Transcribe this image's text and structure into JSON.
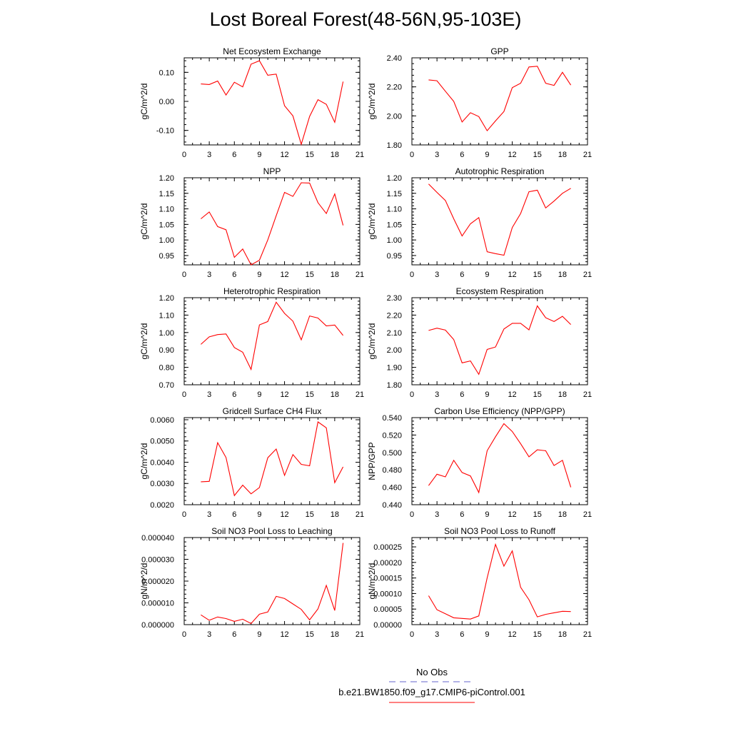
{
  "page_title": "Lost Boreal Forest(48-56N,95-103E)",
  "series_color": "#ff0000",
  "obs_color": "#6666cc",
  "legend": {
    "obs_label": "No Obs",
    "model_label": "b.e21.BW1850.f09_g17.CMIP6-piControl.001"
  },
  "chart_data": [
    {
      "type": "line",
      "title": "Net Ecosystem Exchange",
      "ylabel": "gC/m^2/d",
      "xlim": [
        0,
        21
      ],
      "xticks": [
        0,
        3,
        6,
        9,
        12,
        15,
        18,
        21
      ],
      "ylim": [
        -0.15,
        0.15
      ],
      "yticks": [
        -0.1,
        0.0,
        0.1
      ],
      "ytick_labels": [
        "-0.10",
        "0.00",
        "0.10"
      ],
      "x": [
        2,
        3,
        4,
        5,
        6,
        7,
        8,
        9,
        10,
        11,
        12,
        13,
        14,
        15,
        16,
        17,
        18,
        19
      ],
      "series": [
        {
          "values": [
            0.06,
            0.058,
            0.07,
            0.022,
            0.066,
            0.05,
            0.128,
            0.14,
            0.09,
            0.094,
            -0.015,
            -0.05,
            -0.148,
            -0.052,
            0.006,
            -0.01,
            -0.072,
            0.068
          ]
        }
      ]
    },
    {
      "type": "line",
      "title": "GPP",
      "ylabel": "gC/m^2/d",
      "xlim": [
        0,
        21
      ],
      "xticks": [
        0,
        3,
        6,
        9,
        12,
        15,
        18,
        21
      ],
      "ylim": [
        1.8,
        2.4
      ],
      "yticks": [
        1.8,
        2.0,
        2.2,
        2.4
      ],
      "ytick_labels": [
        "1.80",
        "2.00",
        "2.20",
        "2.40"
      ],
      "x": [
        2,
        3,
        4,
        5,
        6,
        7,
        8,
        9,
        10,
        11,
        12,
        13,
        14,
        15,
        16,
        17,
        18,
        19
      ],
      "series": [
        {
          "values": [
            2.248,
            2.242,
            2.17,
            2.1,
            1.958,
            2.022,
            1.995,
            1.898,
            1.965,
            2.03,
            2.195,
            2.225,
            2.337,
            2.342,
            2.225,
            2.21,
            2.3,
            2.212
          ]
        }
      ]
    },
    {
      "type": "line",
      "title": "NPP",
      "ylabel": "gC/m^2/d",
      "xlim": [
        0,
        21
      ],
      "xticks": [
        0,
        3,
        6,
        9,
        12,
        15,
        18,
        21
      ],
      "ylim": [
        0.92,
        1.2
      ],
      "yticks": [
        0.95,
        1.0,
        1.05,
        1.1,
        1.15,
        1.2
      ],
      "ytick_labels": [
        "0.95",
        "1.00",
        "1.05",
        "1.10",
        "1.15",
        "1.20"
      ],
      "x": [
        2,
        3,
        4,
        5,
        6,
        7,
        8,
        9,
        10,
        11,
        12,
        13,
        14,
        15,
        16,
        17,
        18,
        19
      ],
      "series": [
        {
          "values": [
            1.068,
            1.09,
            1.043,
            1.033,
            0.944,
            0.971,
            0.92,
            0.935,
            1.0,
            1.078,
            1.153,
            1.14,
            1.184,
            1.183,
            1.12,
            1.085,
            1.148,
            1.047
          ]
        }
      ]
    },
    {
      "type": "line",
      "title": "Autotrophic Respiration",
      "ylabel": "gC/m^2/d",
      "xlim": [
        0,
        21
      ],
      "xticks": [
        0,
        3,
        6,
        9,
        12,
        15,
        18,
        21
      ],
      "ylim": [
        0.92,
        1.2
      ],
      "yticks": [
        0.95,
        1.0,
        1.05,
        1.1,
        1.15,
        1.2
      ],
      "ytick_labels": [
        "0.95",
        "1.00",
        "1.05",
        "1.10",
        "1.15",
        "1.20"
      ],
      "x": [
        2,
        3,
        4,
        5,
        6,
        7,
        8,
        9,
        10,
        11,
        12,
        13,
        14,
        15,
        16,
        17,
        18,
        19
      ],
      "series": [
        {
          "values": [
            1.18,
            1.153,
            1.127,
            1.068,
            1.013,
            1.052,
            1.072,
            0.962,
            0.956,
            0.951,
            1.04,
            1.085,
            1.155,
            1.16,
            1.103,
            1.125,
            1.15,
            1.166
          ]
        }
      ]
    },
    {
      "type": "line",
      "title": "Heterotrophic Respiration",
      "ylabel": "gC/m^2/d",
      "xlim": [
        0,
        21
      ],
      "xticks": [
        0,
        3,
        6,
        9,
        12,
        15,
        18,
        21
      ],
      "ylim": [
        0.7,
        1.2
      ],
      "yticks": [
        0.7,
        0.8,
        0.9,
        1.0,
        1.1,
        1.2
      ],
      "ytick_labels": [
        "0.70",
        "0.80",
        "0.90",
        "1.00",
        "1.10",
        "1.20"
      ],
      "x": [
        2,
        3,
        4,
        5,
        6,
        7,
        8,
        9,
        10,
        11,
        12,
        13,
        14,
        15,
        16,
        17,
        18,
        19
      ],
      "series": [
        {
          "values": [
            0.932,
            0.975,
            0.988,
            0.992,
            0.914,
            0.887,
            0.788,
            1.044,
            1.063,
            1.174,
            1.11,
            1.065,
            0.958,
            1.095,
            1.083,
            1.038,
            1.043,
            0.983
          ]
        }
      ]
    },
    {
      "type": "line",
      "title": "Ecosystem Respiration",
      "ylabel": "gC/m^2/d",
      "xlim": [
        0,
        21
      ],
      "xticks": [
        0,
        3,
        6,
        9,
        12,
        15,
        18,
        21
      ],
      "ylim": [
        1.8,
        2.3
      ],
      "yticks": [
        1.8,
        1.9,
        2.0,
        2.1,
        2.2,
        2.3
      ],
      "ytick_labels": [
        "1.80",
        "1.90",
        "2.00",
        "2.10",
        "2.20",
        "2.30"
      ],
      "x": [
        2,
        3,
        4,
        5,
        6,
        7,
        8,
        9,
        10,
        11,
        12,
        13,
        14,
        15,
        16,
        17,
        18,
        19
      ],
      "series": [
        {
          "values": [
            2.112,
            2.125,
            2.114,
            2.06,
            1.926,
            1.937,
            1.86,
            2.003,
            2.017,
            2.12,
            2.153,
            2.153,
            2.115,
            2.253,
            2.185,
            2.163,
            2.193,
            2.146
          ]
        }
      ]
    },
    {
      "type": "line",
      "title": "Gridcell Surface CH4 Flux",
      "ylabel": "gC/m^2/d",
      "xlim": [
        0,
        21
      ],
      "xticks": [
        0,
        3,
        6,
        9,
        12,
        15,
        18,
        21
      ],
      "ylim": [
        0.002,
        0.0061
      ],
      "yticks": [
        0.002,
        0.003,
        0.004,
        0.005,
        0.006
      ],
      "ytick_labels": [
        "0.0020",
        "0.0030",
        "0.0040",
        "0.0050",
        "0.0060"
      ],
      "x": [
        2,
        3,
        4,
        5,
        6,
        7,
        8,
        9,
        10,
        11,
        12,
        13,
        14,
        15,
        16,
        17,
        18,
        19
      ],
      "series": [
        {
          "values": [
            0.00308,
            0.0031,
            0.00492,
            0.00422,
            0.00243,
            0.00292,
            0.00251,
            0.00281,
            0.00421,
            0.00462,
            0.00338,
            0.00436,
            0.0039,
            0.00383,
            0.0059,
            0.00562,
            0.00304,
            0.00378
          ]
        }
      ]
    },
    {
      "type": "line",
      "title": "Carbon Use Efficiency (NPP/GPP)",
      "ylabel": "NPP/GPP",
      "xlim": [
        0,
        21
      ],
      "xticks": [
        0,
        3,
        6,
        9,
        12,
        15,
        18,
        21
      ],
      "ylim": [
        0.44,
        0.54
      ],
      "yticks": [
        0.44,
        0.46,
        0.48,
        0.5,
        0.52,
        0.54
      ],
      "ytick_labels": [
        "0.440",
        "0.460",
        "0.480",
        "0.500",
        "0.520",
        "0.540"
      ],
      "x": [
        2,
        3,
        4,
        5,
        6,
        7,
        8,
        9,
        10,
        11,
        12,
        13,
        14,
        15,
        16,
        17,
        18,
        19
      ],
      "series": [
        {
          "values": [
            0.462,
            0.475,
            0.472,
            0.491,
            0.477,
            0.473,
            0.454,
            0.502,
            0.518,
            0.533,
            0.524,
            0.51,
            0.495,
            0.503,
            0.502,
            0.485,
            0.491,
            0.46
          ]
        }
      ]
    },
    {
      "type": "line",
      "title": "Soil NO3 Pool Loss to Leaching",
      "ylabel": "gN/m^2/d",
      "xlim": [
        0,
        21
      ],
      "xticks": [
        0,
        3,
        6,
        9,
        12,
        15,
        18,
        21
      ],
      "ylim": [
        0.0,
        4e-05
      ],
      "yticks": [
        0.0,
        1e-05,
        2e-05,
        3e-05,
        4e-05
      ],
      "ytick_labels": [
        "0.000000",
        "0.000010",
        "0.000020",
        "0.000030",
        "0.000040"
      ],
      "x": [
        2,
        3,
        4,
        5,
        6,
        7,
        8,
        9,
        10,
        11,
        12,
        13,
        14,
        15,
        16,
        17,
        18,
        19
      ],
      "series": [
        {
          "values": [
            4.5e-06,
            2e-06,
            3.5e-06,
            2.8e-06,
            1.5e-06,
            2.5e-06,
            5e-07,
            4.8e-06,
            5.8e-06,
            1.3e-05,
            1.2e-05,
            9.5e-06,
            7e-06,
            2.2e-06,
            7.2e-06,
            1.8e-05,
            6.5e-06,
            3.75e-05
          ]
        }
      ]
    },
    {
      "type": "line",
      "title": "Soil NO3 Pool Loss to Runoff",
      "ylabel": "gN/m^2/d",
      "xlim": [
        0,
        21
      ],
      "xticks": [
        0,
        3,
        6,
        9,
        12,
        15,
        18,
        21
      ],
      "ylim": [
        0.0,
        0.00028
      ],
      "yticks": [
        0.0,
        5e-05,
        0.0001,
        0.00015,
        0.0002,
        0.00025
      ],
      "ytick_labels": [
        "0.00000",
        "0.00005",
        "0.00010",
        "0.00015",
        "0.00020",
        "0.00025"
      ],
      "x": [
        2,
        3,
        4,
        5,
        6,
        7,
        8,
        9,
        10,
        11,
        12,
        13,
        14,
        15,
        16,
        17,
        18,
        19
      ],
      "series": [
        {
          "values": [
            9.3e-05,
            4.8e-05,
            3.5e-05,
            2.2e-05,
            2e-05,
            1.8e-05,
            2.8e-05,
            0.00015,
            0.000258,
            0.000188,
            0.000237,
            0.00012,
            8e-05,
            2.5e-05,
            3.3e-05,
            3.8e-05,
            4.3e-05,
            4.2e-05
          ]
        }
      ]
    }
  ]
}
